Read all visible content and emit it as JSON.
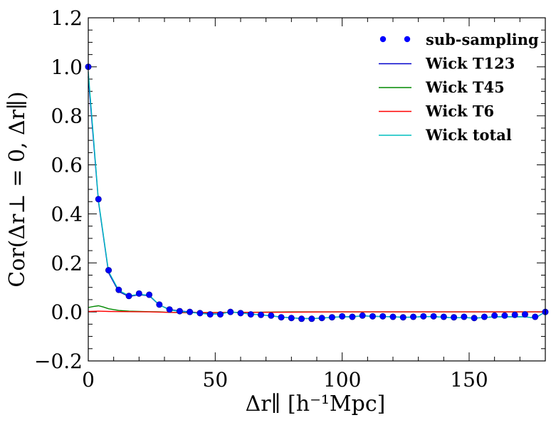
{
  "chart_data": {
    "type": "line",
    "xlabel": "Δr∥ [h⁻¹Mpc]",
    "ylabel": "Cor(Δr⊥ = 0, Δr∥)",
    "xlim": [
      0,
      180
    ],
    "ylim": [
      -0.2,
      1.2
    ],
    "xticks": [
      0,
      50,
      100,
      150
    ],
    "xtick_labels": [
      "0",
      "50",
      "100",
      "150"
    ],
    "yticks": [
      -0.2,
      0.0,
      0.2,
      0.4,
      0.6,
      0.8,
      1.0,
      1.2
    ],
    "ytick_labels": [
      "−0.2",
      "0.0",
      "0.2",
      "0.4",
      "0.6",
      "0.8",
      "1.0",
      "1.2"
    ],
    "legend_position": "top-right",
    "series": [
      {
        "name": "sub-sampling",
        "style": "markers",
        "color": "#0000ff",
        "x": [
          0,
          4,
          8,
          12,
          16,
          20,
          24,
          28,
          32,
          36,
          40,
          44,
          48,
          52,
          56,
          60,
          64,
          68,
          72,
          76,
          80,
          84,
          88,
          92,
          96,
          100,
          104,
          108,
          112,
          116,
          120,
          124,
          128,
          132,
          136,
          140,
          144,
          148,
          152,
          156,
          160,
          164,
          168,
          172,
          176,
          180
        ],
        "y": [
          1.0,
          0.46,
          0.17,
          0.09,
          0.065,
          0.075,
          0.07,
          0.03,
          0.01,
          0.003,
          0.0,
          -0.005,
          -0.01,
          -0.01,
          0.0,
          -0.005,
          -0.01,
          -0.012,
          -0.015,
          -0.022,
          -0.025,
          -0.028,
          -0.028,
          -0.025,
          -0.022,
          -0.018,
          -0.02,
          -0.015,
          -0.018,
          -0.018,
          -0.02,
          -0.022,
          -0.02,
          -0.018,
          -0.018,
          -0.02,
          -0.022,
          -0.02,
          -0.025,
          -0.02,
          -0.015,
          -0.015,
          -0.012,
          -0.01,
          -0.02,
          0.0
        ]
      },
      {
        "name": "Wick T123",
        "style": "line",
        "color": "#0000cc",
        "x": [
          0,
          4,
          8,
          12,
          16,
          20,
          24,
          28,
          32,
          36,
          40,
          44,
          48,
          52,
          56,
          60,
          64,
          68,
          72,
          76,
          80,
          84,
          88,
          92,
          96,
          100,
          104,
          108,
          112,
          116,
          120,
          124,
          128,
          132,
          136,
          140,
          144,
          148,
          152,
          156,
          160,
          164,
          168,
          172,
          176,
          180
        ],
        "y": [
          0.96,
          0.45,
          0.16,
          0.083,
          0.063,
          0.07,
          0.066,
          0.028,
          0.01,
          0.004,
          0.0,
          -0.004,
          -0.008,
          -0.008,
          0.0,
          -0.004,
          -0.009,
          -0.012,
          -0.016,
          -0.021,
          -0.024,
          -0.027,
          -0.027,
          -0.025,
          -0.022,
          -0.02,
          -0.02,
          -0.016,
          -0.018,
          -0.019,
          -0.02,
          -0.022,
          -0.021,
          -0.019,
          -0.019,
          -0.022,
          -0.024,
          -0.023,
          -0.025,
          -0.023,
          -0.02,
          -0.02,
          -0.02,
          -0.02,
          -0.025,
          0.0
        ]
      },
      {
        "name": "Wick T45",
        "style": "line",
        "color": "#008800",
        "x": [
          0,
          2,
          4,
          6,
          8,
          12,
          16,
          20,
          24,
          28,
          32,
          40,
          60,
          80,
          100,
          120,
          140,
          160,
          180
        ],
        "y": [
          0.018,
          0.022,
          0.025,
          0.02,
          0.013,
          0.006,
          0.003,
          0.002,
          0.001,
          0.0,
          -0.002,
          -0.003,
          -0.002,
          0.0,
          0.0,
          0.0,
          0.0,
          0.0,
          0.0
        ]
      },
      {
        "name": "Wick T6",
        "style": "line",
        "color": "#ff0000",
        "x": [
          0,
          4,
          8,
          16,
          24,
          32,
          40,
          60,
          80,
          100,
          120,
          140,
          160,
          180
        ],
        "y": [
          0.002,
          0.003,
          0.002,
          0.001,
          0.0,
          -0.002,
          -0.003,
          -0.002,
          -0.001,
          0.0,
          0.0,
          0.0,
          0.0,
          0.0
        ]
      },
      {
        "name": "Wick total",
        "style": "line",
        "color": "#00bfbf",
        "x": [
          0,
          4,
          8,
          12,
          16,
          20,
          24,
          28,
          32,
          36,
          40,
          44,
          48,
          52,
          56,
          60,
          64,
          68,
          72,
          76,
          80,
          84,
          88,
          92,
          96,
          100,
          104,
          108,
          112,
          116,
          120,
          124,
          128,
          132,
          136,
          140,
          144,
          148,
          152,
          156,
          160,
          164,
          168,
          172,
          176,
          180
        ],
        "y": [
          0.98,
          0.455,
          0.165,
          0.088,
          0.066,
          0.072,
          0.068,
          0.029,
          0.008,
          0.002,
          -0.002,
          -0.006,
          -0.01,
          -0.009,
          0.0,
          -0.004,
          -0.009,
          -0.012,
          -0.016,
          -0.021,
          -0.024,
          -0.027,
          -0.027,
          -0.025,
          -0.022,
          -0.02,
          -0.02,
          -0.016,
          -0.018,
          -0.019,
          -0.02,
          -0.022,
          -0.021,
          -0.019,
          -0.019,
          -0.022,
          -0.024,
          -0.023,
          -0.025,
          -0.023,
          -0.02,
          -0.02,
          -0.02,
          -0.02,
          -0.025,
          0.0
        ]
      }
    ]
  }
}
